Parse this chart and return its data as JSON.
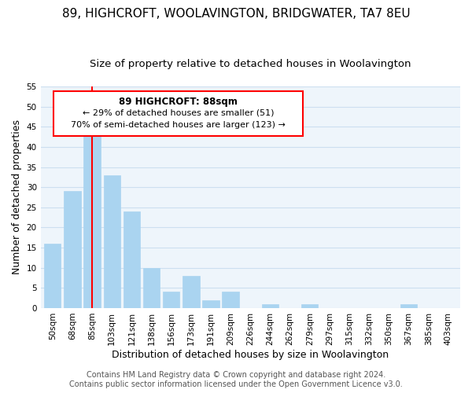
{
  "title": "89, HIGHCROFT, WOOLAVINGTON, BRIDGWATER, TA7 8EU",
  "subtitle": "Size of property relative to detached houses in Woolavington",
  "xlabel": "Distribution of detached houses by size in Woolavington",
  "ylabel": "Number of detached properties",
  "footer_line1": "Contains HM Land Registry data © Crown copyright and database right 2024.",
  "footer_line2": "Contains public sector information licensed under the Open Government Licence v3.0.",
  "bin_labels": [
    "50sqm",
    "68sqm",
    "85sqm",
    "103sqm",
    "121sqm",
    "138sqm",
    "156sqm",
    "173sqm",
    "191sqm",
    "209sqm",
    "226sqm",
    "244sqm",
    "262sqm",
    "279sqm",
    "297sqm",
    "315sqm",
    "332sqm",
    "350sqm",
    "367sqm",
    "385sqm",
    "403sqm"
  ],
  "bar_values": [
    16,
    29,
    43,
    33,
    24,
    10,
    4,
    8,
    2,
    4,
    0,
    1,
    0,
    1,
    0,
    0,
    0,
    0,
    1,
    0,
    0
  ],
  "bar_color": "#aad4f0",
  "bar_edge_color": "#aad4f0",
  "highlight_bar_index": 2,
  "vline_color": "red",
  "ylim": [
    0,
    55
  ],
  "yticks": [
    0,
    5,
    10,
    15,
    20,
    25,
    30,
    35,
    40,
    45,
    50,
    55
  ],
  "annotation_title": "89 HIGHCROFT: 88sqm",
  "annotation_line1": "← 29% of detached houses are smaller (51)",
  "annotation_line2": "70% of semi-detached houses are larger (123) →",
  "bg_color": "#eef5fb",
  "grid_color": "#ccdff0",
  "title_fontsize": 11,
  "subtitle_fontsize": 9.5,
  "axis_label_fontsize": 9,
  "tick_fontsize": 7.5,
  "footer_fontsize": 7
}
